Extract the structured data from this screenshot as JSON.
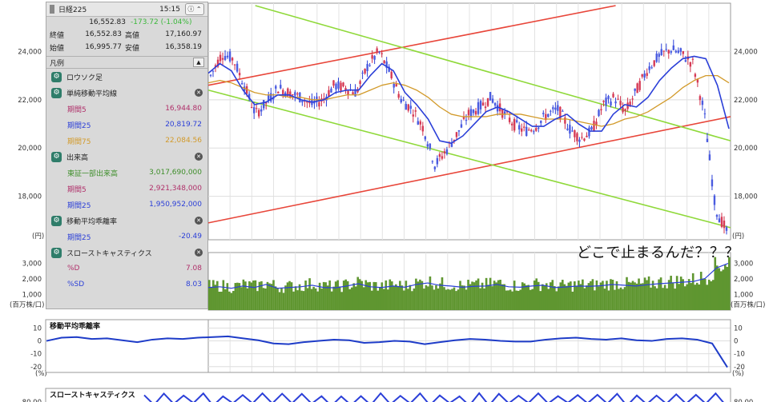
{
  "quote": {
    "name": "日経225",
    "time": "15:15",
    "last": "16,552.83",
    "change": "-173.72 (-1.04%)",
    "rows": [
      [
        {
          "label": "終値",
          "value": "16,552.83"
        },
        {
          "label": "高値",
          "value": "17,160.97"
        }
      ],
      [
        {
          "label": "始値",
          "value": "16,995.77"
        },
        {
          "label": "安値",
          "value": "16,358.19"
        }
      ]
    ],
    "info_button": "ⓘ ⌃"
  },
  "legend": {
    "title": "凡例",
    "indicators": [
      {
        "name": "ロウソク足",
        "close": false,
        "subs": []
      },
      {
        "name": "単純移動平均線",
        "close": true,
        "subs": [
          {
            "label": "期間5",
            "value": "16,944.80",
            "color": "#b0306a"
          },
          {
            "label": "期間25",
            "value": "20,819.72",
            "color": "#2b3fd8"
          },
          {
            "label": "期間75",
            "value": "22,084.56",
            "color": "#d29a2a"
          }
        ]
      },
      {
        "name": "出来高",
        "close": true,
        "subs": [
          {
            "label": "東証一部出来高",
            "value": "3,017,690,000",
            "color": "#3e8e2a"
          },
          {
            "label": "期間5",
            "value": "2,921,348,000",
            "color": "#b0306a"
          },
          {
            "label": "期間25",
            "value": "1,950,952,000",
            "color": "#2b3fd8"
          }
        ]
      },
      {
        "name": "移動平均乖離率",
        "close": true,
        "subs": [
          {
            "label": "期間25",
            "value": "-20.49",
            "color": "#2b3fd8"
          }
        ]
      },
      {
        "name": "スローストキャスティクス",
        "close": true,
        "subs": [
          {
            "label": "%D",
            "value": "7.08",
            "color": "#b0306a"
          },
          {
            "label": "%SD",
            "value": "8.03",
            "color": "#2b3fd8"
          }
        ]
      }
    ]
  },
  "annotation": "どこで止まるんだ？？？",
  "panels": {
    "deviation_title": "移動平均乖離率",
    "stoch_title": "スローストキャスティクス"
  },
  "chart_data": [
    {
      "type": "line",
      "panel": "price",
      "series": [
        {
          "values": [
            23000,
            23900,
            23700,
            22600,
            21400,
            21900,
            22500,
            22300,
            22100,
            21800,
            22000,
            22600,
            22500,
            22300,
            23400,
            24000,
            23100,
            22000,
            21600,
            20800,
            19300,
            19900,
            20600,
            21400,
            21700,
            22100,
            21500,
            21000,
            20700,
            20900,
            21400,
            21600,
            20800,
            20400,
            20700,
            21800,
            22100,
            21500,
            22400,
            23300,
            23800,
            24100,
            23900,
            23500,
            21500,
            17500,
            16550
          ]
        },
        {
          "values": [
            23100,
            23500,
            23200,
            22400,
            21800,
            21900,
            22200,
            22200,
            22000,
            21900,
            22000,
            22300,
            22400,
            22400,
            23000,
            23500,
            23200,
            22300,
            21800,
            21200,
            20300,
            20200,
            20500,
            21000,
            21500,
            21700,
            21500,
            21200,
            20900,
            20900,
            21200,
            21400,
            21000,
            20700,
            20700,
            21400,
            21800,
            21700,
            22100,
            22800,
            23300,
            23700,
            23800,
            23700,
            22600,
            20800
          ]
        },
        {
          "values": [
            22700,
            22800,
            22700,
            22500,
            22300,
            22200,
            22200,
            22100,
            22100,
            22000,
            22000,
            22100,
            22200,
            22200,
            22400,
            22600,
            22700,
            22600,
            22400,
            22100,
            21700,
            21400,
            21300,
            21300,
            21300,
            21400,
            21400,
            21400,
            21300,
            21200,
            21200,
            21200,
            21100,
            21000,
            20900,
            21000,
            21200,
            21300,
            21500,
            21800,
            22100,
            22500,
            22800,
            23000,
            23000,
            22700
          ]
        }
      ],
      "y_ticks": [
        "24,000",
        "22,000",
        "20,000",
        "18,000"
      ],
      "unit": "(円)",
      "trend_lines": [
        {
          "color": "#e8463a",
          "from": [
            0,
            22600
          ],
          "to": [
            0.78,
            25900
          ]
        },
        {
          "color": "#e8463a",
          "from": [
            0,
            16900
          ],
          "to": [
            1,
            21300
          ]
        },
        {
          "color": "#8fd93a",
          "from": [
            0.09,
            25900
          ],
          "to": [
            1,
            20300
          ]
        },
        {
          "color": "#8fd93a",
          "from": [
            0,
            22400
          ],
          "to": [
            1,
            16700
          ]
        }
      ]
    },
    {
      "type": "bar",
      "panel": "volume",
      "values": [
        1500,
        1550,
        1450,
        1600,
        1500,
        1700,
        1450,
        1500,
        1550,
        1650,
        1500,
        1480,
        1600,
        1750,
        1550,
        1500,
        1600,
        1520,
        1700,
        1800,
        1650,
        1600,
        1520,
        1580,
        1600,
        1700,
        1550,
        1520,
        1600,
        1650,
        1500,
        1540,
        1600,
        1580,
        1620,
        1700,
        1650,
        1600,
        1680,
        1750,
        1800,
        1850,
        1900,
        2100,
        2800,
        3100
      ],
      "y_ticks": [
        "3,000",
        "2,000",
        "1,000"
      ],
      "unit": "(百万株/口)"
    },
    {
      "type": "line",
      "panel": "deviation",
      "values": [
        0,
        2.5,
        3,
        1.5,
        2,
        0.5,
        -1,
        1,
        2,
        1.5,
        2.5,
        3,
        3.5,
        2,
        0.5,
        -2,
        -2.5,
        -1,
        0,
        1,
        0.5,
        -1.5,
        -1,
        0,
        -0.5,
        -2.5,
        -1,
        0.5,
        1.5,
        1,
        0,
        -0.5,
        -0.5,
        1,
        2,
        2.5,
        1.5,
        1,
        2,
        0.5,
        0,
        1.5,
        2,
        1,
        -2,
        -20.49
      ],
      "y_ticks": [
        "10",
        "0",
        "-10",
        "-20"
      ],
      "unit": "(%)"
    },
    {
      "type": "line",
      "panel": "stochastic",
      "y_ticks": [
        "80.00"
      ]
    }
  ]
}
